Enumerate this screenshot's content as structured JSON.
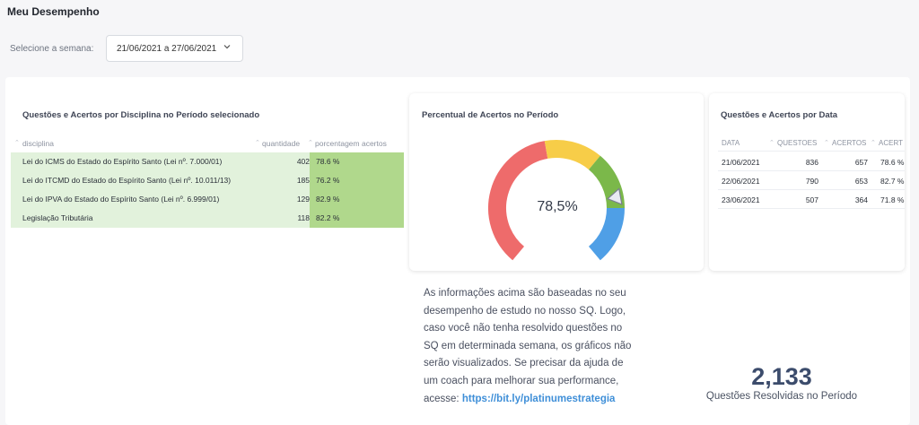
{
  "page": {
    "title": "Meu Desempenho"
  },
  "week_filter": {
    "label": "Selecione a semana:",
    "value": "21/06/2021 a 27/06/2021"
  },
  "discipline_card": {
    "title": "Questões e Acertos por Disciplina no Período selecionado",
    "columns": {
      "disciplina": "disciplina",
      "quantidade": "quantidade",
      "porcentagem": "porcentagem acertos"
    },
    "rows": [
      {
        "name": "Lei do ICMS do Estado do Espírito Santo (Lei nº. 7.000/01)",
        "qty": "402",
        "pct": "78.6 %"
      },
      {
        "name": "Lei do ITCMD do Estado do Espírito Santo (Lei nº. 10.011/13)",
        "qty": "185",
        "pct": "76.2 %"
      },
      {
        "name": "Lei do IPVA do Estado do Espírito Santo (Lei nº. 6.999/01)",
        "qty": "129",
        "pct": "82.9 %"
      },
      {
        "name": "Legislação Tributária",
        "qty": "118",
        "pct": "82.2 %"
      }
    ]
  },
  "gauge_card": {
    "title": "Percentual de Acertos no Período",
    "value_label": "78,5%",
    "value": 78.5,
    "colors": {
      "red": "#ee6b6b",
      "yellow": "#f7cd48",
      "green": "#7bb84a",
      "blue": "#4f9fe6"
    }
  },
  "date_card": {
    "title": "Questões e Acertos por Data",
    "columns": {
      "data": "DATA",
      "questoes": "QUESTOES",
      "acertos": "ACERTOS",
      "acerto_pct": "ACERT"
    },
    "rows": [
      {
        "date": "21/06/2021",
        "questoes": "836",
        "acertos": "657",
        "pct": "78.6 %"
      },
      {
        "date": "22/06/2021",
        "questoes": "790",
        "acertos": "653",
        "pct": "82.7 %"
      },
      {
        "date": "23/06/2021",
        "questoes": "507",
        "acertos": "364",
        "pct": "71.8 %"
      }
    ]
  },
  "info": {
    "text": "As informações acima são baseadas no seu desempenho de estudo no nosso SQ. Logo, caso você não tenha resolvido questões no SQ em determinada semana, os gráficos não serão visualizados. Se precisar da ajuda de um coach para melhorar sua performance, acesse:",
    "link": "https://bit.ly/platinumestrategia"
  },
  "summary": {
    "number": "2,133",
    "label": "Questões Resolvidas no Período"
  }
}
